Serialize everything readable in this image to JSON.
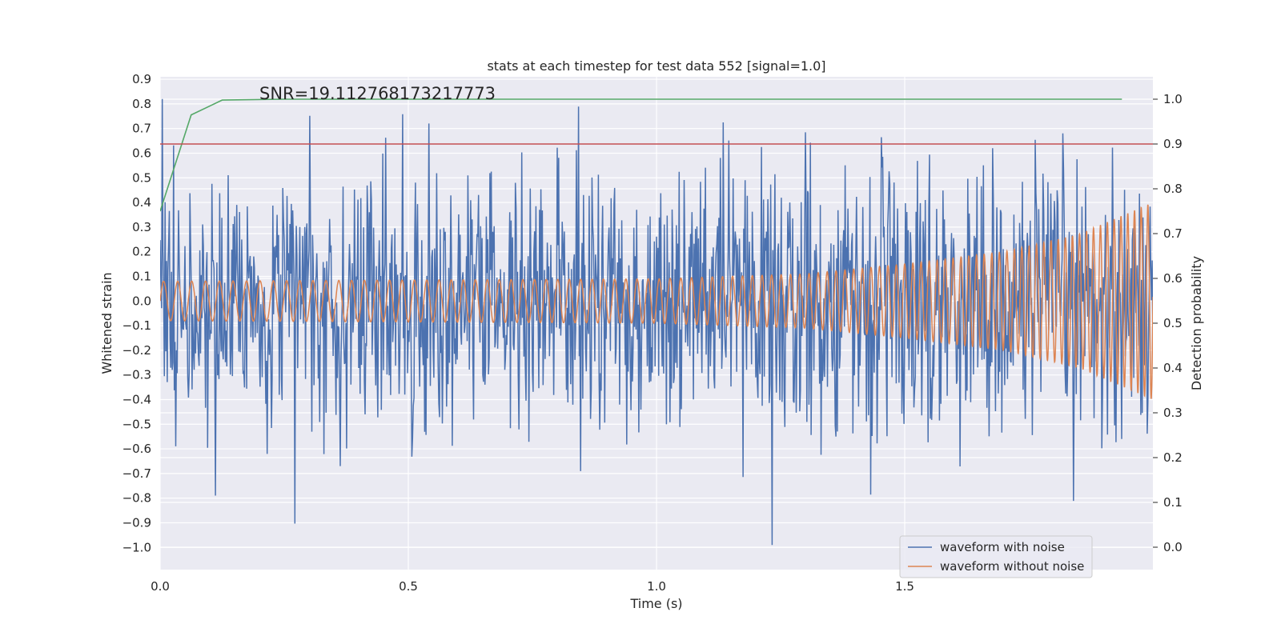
{
  "chart_data": {
    "type": "line",
    "title": "stats at each timestep for test data 552 [signal=1.0]",
    "xlabel": "Time (s)",
    "ylabel": "Whitened strain",
    "y2label": "Detection probability",
    "annotation": "SNR=19.112768173217773",
    "xlim": [
      0.0,
      2.0
    ],
    "ylim": [
      -1.09,
      0.91
    ],
    "y2lim": [
      -0.05,
      1.05
    ],
    "x_ticks": [
      0.0,
      0.5,
      1.0,
      1.5
    ],
    "x_tick_labels": [
      "0.0",
      "0.5",
      "1.0",
      "1.5"
    ],
    "y_ticks": [
      0.9,
      0.8,
      0.7,
      0.6,
      0.5,
      0.4,
      0.3,
      0.2,
      0.1,
      0.0,
      -0.1,
      -0.2,
      -0.3,
      -0.4,
      -0.5,
      -0.6,
      -0.7,
      -0.8,
      -0.9,
      -1.0
    ],
    "y_tick_labels": [
      "0.9",
      "0.8",
      "0.7",
      "0.6",
      "0.5",
      "0.4",
      "0.3",
      "0.2",
      "0.1",
      "0.0",
      "−0.1",
      "−0.2",
      "−0.3",
      "−0.4",
      "−0.5",
      "−0.6",
      "−0.7",
      "−0.8",
      "−0.9",
      "−1.0"
    ],
    "y2_ticks": [
      1.0,
      0.9,
      0.8,
      0.7,
      0.6,
      0.5,
      0.4,
      0.3,
      0.2,
      0.1,
      0.0
    ],
    "y2_tick_labels": [
      "1.0",
      "0.9",
      "0.8",
      "0.7",
      "0.6",
      "0.5",
      "0.4",
      "0.3",
      "0.2",
      "0.1",
      "0.0"
    ],
    "grid": true,
    "legend_position": "lower-right",
    "series": [
      {
        "name": "waveform with noise",
        "color": "#4c72b0",
        "axis": "left",
        "description_values": "white-noise-like strain, mostly between -0.6 and 0.6, peaks near 0.8 and -0.99"
      },
      {
        "name": "waveform without noise",
        "color": "#dd8452",
        "axis": "left",
        "envelope": {
          "x": [
            0.0,
            0.5,
            1.0,
            1.3,
            1.5,
            1.7,
            1.85,
            2.0
          ],
          "amplitude": [
            0.08,
            0.085,
            0.09,
            0.11,
            0.15,
            0.2,
            0.27,
            0.4
          ]
        },
        "frequency_hz": {
          "x": [
            0.0,
            1.0,
            2.0
          ],
          "f": [
            35,
            45,
            75
          ]
        }
      },
      {
        "x": [
          0.0,
          0.0625,
          0.125,
          0.25,
          0.5,
          1.0,
          1.5,
          1.9375
        ],
        "values": [
          0.75,
          0.965,
          0.998,
          1.0,
          1.0,
          1.0,
          1.0,
          1.0
        ],
        "color": "#55a868",
        "axis": "right"
      },
      {
        "x": [
          0.0,
          2.0
        ],
        "values": [
          0.9,
          0.9
        ],
        "color": "#c44e52",
        "axis": "right"
      }
    ]
  }
}
